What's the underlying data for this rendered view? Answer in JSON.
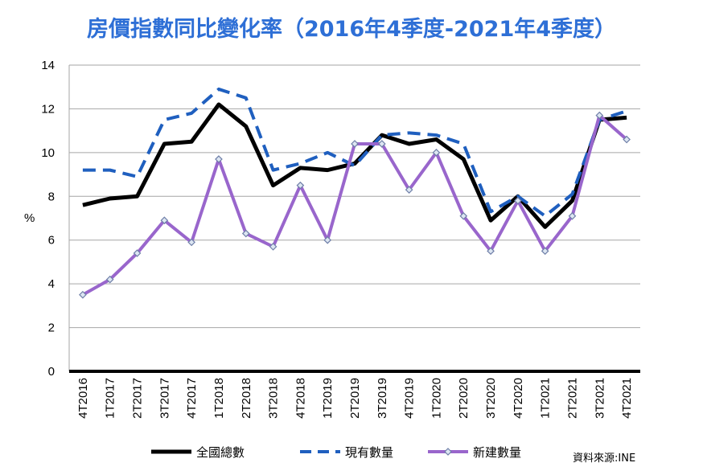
{
  "chart_data": {
    "type": "line",
    "title": "房價指數同比變化率（2016年4季度-2021年4季度）",
    "ylabel": "%",
    "xlabel": "",
    "ylim": [
      0,
      14
    ],
    "yticks": [
      0,
      2,
      4,
      6,
      8,
      10,
      12,
      14
    ],
    "grid": true,
    "legend_position": "bottom",
    "categories": [
      "4T2016",
      "1T2017",
      "2T2017",
      "3T2017",
      "4T2017",
      "1T2018",
      "2T2018",
      "3T2018",
      "4T2018",
      "1T2019",
      "2T2019",
      "3T2019",
      "4T2019",
      "1T2020",
      "2T2020",
      "3T2020",
      "4T2020",
      "1T2021",
      "2T2021",
      "3T2021",
      "4T2021"
    ],
    "series": [
      {
        "name": "全國總數",
        "color": "#000000",
        "style": "solid",
        "values": [
          7.6,
          7.9,
          8.0,
          10.4,
          10.5,
          12.2,
          11.2,
          8.5,
          9.3,
          9.2,
          9.5,
          10.8,
          10.4,
          10.6,
          9.7,
          6.9,
          8.0,
          6.6,
          7.8,
          11.5,
          11.6
        ]
      },
      {
        "name": "現有數量",
        "color": "#1f5fbf",
        "style": "dashed",
        "values": [
          9.2,
          9.2,
          8.9,
          11.5,
          11.8,
          12.9,
          12.5,
          9.2,
          9.5,
          10.0,
          9.4,
          10.8,
          10.9,
          10.8,
          10.4,
          7.3,
          8.0,
          7.1,
          8.1,
          11.5,
          11.9
        ]
      },
      {
        "name": "新建數量",
        "color": "#9966cc",
        "style": "solid-marker",
        "values": [
          3.5,
          4.2,
          5.4,
          6.9,
          5.9,
          9.7,
          6.3,
          5.7,
          8.5,
          6.0,
          10.4,
          10.4,
          8.3,
          10.0,
          7.1,
          5.5,
          7.8,
          5.5,
          7.1,
          11.7,
          10.6
        ]
      }
    ],
    "source": "資料來源:INE"
  }
}
